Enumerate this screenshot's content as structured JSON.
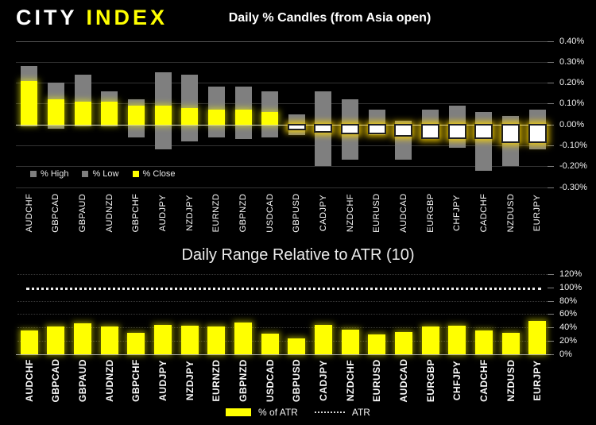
{
  "header": {
    "logo_city": "CITY",
    "logo_index": "INDEX"
  },
  "colors": {
    "background": "#000000",
    "accent_yellow": "#FFFF00",
    "bar_gray": "#7F7F7F",
    "neg_close_white": "#FFFFFF",
    "zero_line": "#D9D9D9"
  },
  "chart_data": [
    {
      "type": "bar",
      "title": "Daily % Candles (from Asia open)",
      "categories": [
        "AUDCHF",
        "GBPCAD",
        "GBPAUD",
        "AUDNZD",
        "GBPCHF",
        "AUDJPY",
        "NZDJPY",
        "EURNZD",
        "GBPNZD",
        "USDCAD",
        "GBPUSD",
        "CADJPY",
        "NZDCHF",
        "EURUSD",
        "AUDCAD",
        "EURGBP",
        "CHFJPY",
        "CADCHF",
        "NZDUSD",
        "EURJPY"
      ],
      "series": [
        {
          "name": "% High",
          "values": [
            0.28,
            0.2,
            0.24,
            0.16,
            0.12,
            0.25,
            0.24,
            0.18,
            0.18,
            0.16,
            0.05,
            0.16,
            0.12,
            0.07,
            0.02,
            0.07,
            0.09,
            0.06,
            0.04,
            0.07
          ]
        },
        {
          "name": "% Low",
          "values": [
            -0.01,
            -0.02,
            -0.01,
            -0.01,
            -0.06,
            -0.12,
            -0.08,
            -0.06,
            -0.07,
            -0.06,
            -0.05,
            -0.2,
            -0.17,
            -0.05,
            -0.17,
            -0.07,
            -0.11,
            -0.22,
            -0.2,
            -0.12
          ]
        },
        {
          "name": "% Close",
          "values": [
            0.21,
            0.12,
            0.11,
            0.11,
            0.09,
            0.09,
            0.08,
            0.07,
            0.07,
            0.06,
            -0.02,
            -0.03,
            -0.04,
            -0.04,
            -0.05,
            -0.06,
            -0.06,
            -0.06,
            -0.08,
            -0.08
          ]
        }
      ],
      "ylim": [
        -0.305,
        0.425
      ],
      "ytick_values": [
        0.4,
        0.3,
        0.2,
        0.1,
        0,
        -0.1,
        -0.2,
        -0.3
      ],
      "ytick_labels": [
        "0.40%",
        "0.30%",
        "0.20%",
        "0.10%",
        "0.00%",
        "-0.10%",
        "-0.20%",
        "-0.30%"
      ],
      "legend": [
        "% High",
        "% Low",
        "% Close"
      ],
      "legend_position": "bottom-left-inside",
      "grid": "solid",
      "axis_side": "right"
    },
    {
      "type": "bar",
      "title": "Daily Range Relative to ATR (10)",
      "categories": [
        "AUDCHF",
        "GBPCAD",
        "GBPAUD",
        "AUDNZD",
        "GBPCHF",
        "AUDJPY",
        "NZDJPY",
        "EURNZD",
        "GBPNZD",
        "USDCAD",
        "GBPUSD",
        "CADJPY",
        "NZDCHF",
        "EURUSD",
        "AUDCAD",
        "EURGBP",
        "CHFJPY",
        "CADCHF",
        "NZDUSD",
        "EURJPY"
      ],
      "series": [
        {
          "name": "% of ATR",
          "values": [
            36,
            41,
            46,
            42,
            32,
            44,
            43,
            42,
            47,
            31,
            24,
            44,
            37,
            30,
            33,
            41,
            43,
            36,
            32,
            50
          ]
        }
      ],
      "reference_line": {
        "label": "ATR",
        "value": 100,
        "style": "dotted-white"
      },
      "ylim": [
        0,
        125
      ],
      "ytick_values": [
        120,
        100,
        80,
        60,
        40,
        20,
        0
      ],
      "ytick_labels": [
        "120%",
        "100%",
        "80%",
        "60%",
        "40%",
        "20%",
        "0%"
      ],
      "legend": [
        "% of ATR",
        "ATR"
      ],
      "legend_position": "bottom-center",
      "grid": "dotted",
      "axis_side": "right"
    }
  ]
}
